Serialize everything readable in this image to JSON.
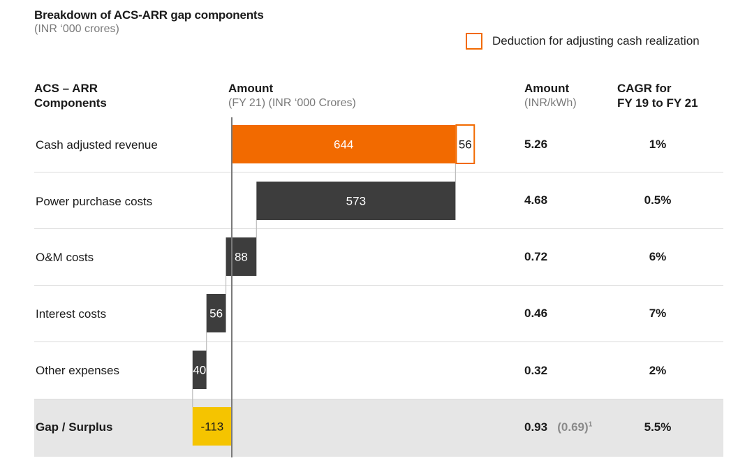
{
  "title": "Breakdown of ACS-ARR gap components",
  "subtitle": "(INR ‘000 crores)",
  "legend": {
    "label": "Deduction for adjusting cash realization",
    "color": "#f26a00"
  },
  "headers": {
    "components_line1": "ACS – ARR",
    "components_line2": "Components",
    "amount_title": "Amount",
    "amount_sub": "(FY 21) (INR ‘000 Crores)",
    "kwh_title": "Amount",
    "kwh_sub": "(INR/kWh)",
    "cagr_line1": "CAGR for",
    "cagr_line2": "FY 19 to FY 21"
  },
  "rows": [
    {
      "label": "Cash adjusted revenue",
      "kwh": "5.26",
      "cagr": "1%"
    },
    {
      "label": "Power purchase costs",
      "kwh": "4.68",
      "cagr": "0.5%"
    },
    {
      "label": "O&M costs",
      "kwh": "0.72",
      "cagr": "6%"
    },
    {
      "label": "Interest costs",
      "kwh": "0.46",
      "cagr": "7%"
    },
    {
      "label": "Other expenses",
      "kwh": "0.32",
      "cagr": "2%"
    },
    {
      "label": "Gap / Surplus",
      "kwh": "0.93",
      "kwh_extra": "(0.69)",
      "footnote": "1",
      "cagr": "5.5%"
    }
  ],
  "colors": {
    "revenue": "#f26a00",
    "cost": "#3d3d3d",
    "gap": "#f5c400",
    "deduction_border": "#f26a00"
  },
  "chart_data": {
    "type": "waterfall",
    "unit": "INR ‘000 Crores",
    "bars": [
      {
        "category": "Cash adjusted revenue",
        "value": 644,
        "start": 0,
        "end": 644,
        "label": "644",
        "kind": "revenue"
      },
      {
        "category": "Cash adjusted revenue",
        "value": 56,
        "start": 644,
        "end": 700,
        "label": "56",
        "kind": "deduction"
      },
      {
        "category": "Power purchase costs",
        "value": 573,
        "start": 71,
        "end": 644,
        "label": "573",
        "kind": "cost"
      },
      {
        "category": "O&M costs",
        "value": 88,
        "start": -17,
        "end": 71,
        "label": "88",
        "kind": "cost"
      },
      {
        "category": "Interest costs",
        "value": 56,
        "start": -73,
        "end": -17,
        "label": "56",
        "kind": "cost"
      },
      {
        "category": "Other expenses",
        "value": 40,
        "start": -113,
        "end": -73,
        "label": "40",
        "kind": "cost"
      },
      {
        "category": "Gap / Surplus",
        "value": -113,
        "start": -113,
        "end": 0,
        "label": "-113",
        "kind": "gap"
      }
    ]
  }
}
